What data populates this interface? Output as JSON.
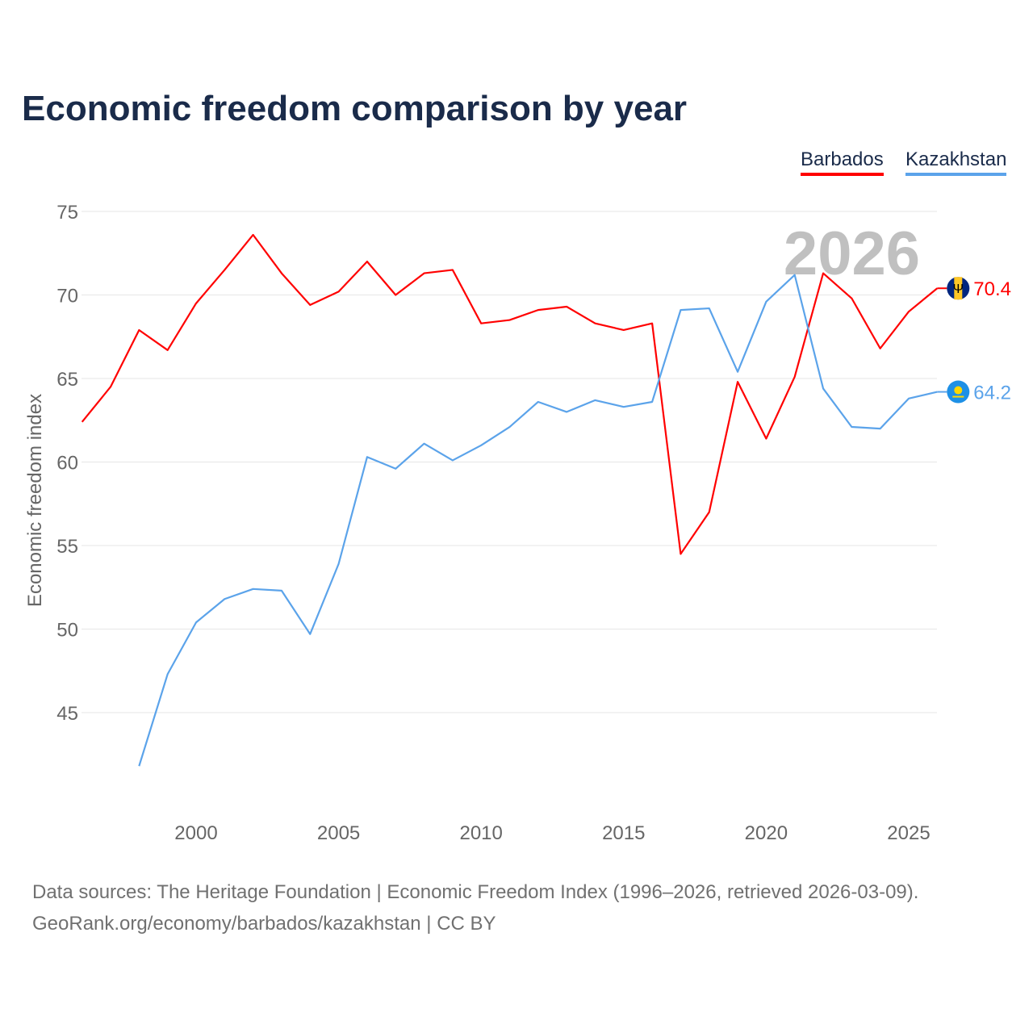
{
  "title": "Economic freedom comparison by year",
  "footer": {
    "line1": "Data sources: The Heritage Foundation | Economic Freedom Index (1996–2026, retrieved 2026-03-09).",
    "line2": "GeoRank.org/economy/barbados/kazakhstan | CC BY"
  },
  "chart_data": {
    "type": "line",
    "title": "Economic freedom comparison by year",
    "xlabel": "",
    "ylabel": "Economic freedom index",
    "xlim": [
      1996,
      2026
    ],
    "ylim": [
      38.5,
      76
    ],
    "x_ticks": [
      2000,
      2005,
      2010,
      2015,
      2020,
      2025
    ],
    "y_ticks": [
      45,
      50,
      55,
      60,
      65,
      70,
      75
    ],
    "grid": true,
    "legend_position": "top-right",
    "watermark_year": "2026",
    "series": [
      {
        "name": "Barbados",
        "color": "#ff0000",
        "end_label": "70.4",
        "x": [
          1996,
          1997,
          1998,
          1999,
          2000,
          2001,
          2002,
          2003,
          2004,
          2005,
          2006,
          2007,
          2008,
          2009,
          2010,
          2011,
          2012,
          2013,
          2014,
          2015,
          2016,
          2017,
          2018,
          2019,
          2020,
          2021,
          2022,
          2023,
          2024,
          2025,
          2026
        ],
        "values": [
          62.4,
          64.5,
          67.9,
          66.7,
          69.5,
          71.5,
          73.6,
          71.3,
          69.4,
          70.2,
          72.0,
          70.0,
          71.3,
          71.5,
          68.3,
          68.5,
          69.1,
          69.3,
          68.3,
          67.9,
          68.3,
          54.5,
          57.0,
          64.8,
          61.4,
          65.1,
          71.3,
          69.8,
          66.8,
          69.0,
          70.4
        ]
      },
      {
        "name": "Kazakhstan",
        "color": "#5ba3ea",
        "end_label": "64.2",
        "x": [
          1998,
          1999,
          2000,
          2001,
          2002,
          2003,
          2004,
          2005,
          2006,
          2007,
          2008,
          2009,
          2010,
          2011,
          2012,
          2013,
          2014,
          2015,
          2016,
          2017,
          2018,
          2019,
          2020,
          2021,
          2022,
          2023,
          2024,
          2025,
          2026
        ],
        "values": [
          41.8,
          47.3,
          50.4,
          51.8,
          52.4,
          52.3,
          49.7,
          53.9,
          60.3,
          59.6,
          61.1,
          60.1,
          61.0,
          62.1,
          63.6,
          63.0,
          63.7,
          63.3,
          63.6,
          69.1,
          69.2,
          65.4,
          69.6,
          71.2,
          64.4,
          62.1,
          62.0,
          63.8,
          64.2
        ]
      }
    ]
  }
}
